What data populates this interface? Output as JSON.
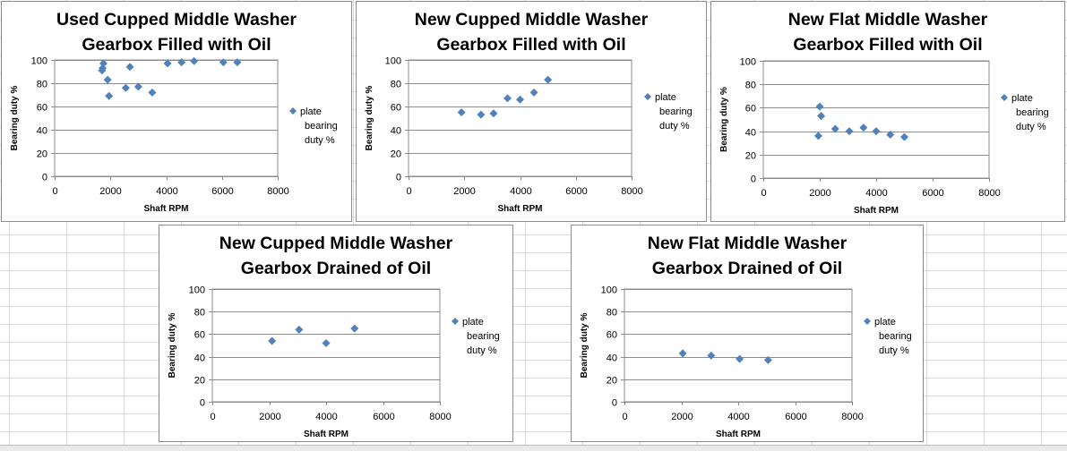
{
  "colors": {
    "marker": "#4f81bd",
    "gridline": "#8c8c8c",
    "axis": "#868686",
    "border": "#8c8c8c"
  },
  "legend_marker_icon": "diamond-marker",
  "chart_data": [
    {
      "type": "scatter",
      "title_lines": [
        "Used Cupped Middle Washer",
        "Gearbox Filled with Oil"
      ],
      "xlabel": "Shaft RPM",
      "ylabel": "Bearing duty %",
      "xlim": [
        0,
        8000
      ],
      "xticks": [
        0,
        2000,
        4000,
        6000,
        8000
      ],
      "ylim": [
        0,
        100
      ],
      "yticks": [
        0,
        20,
        40,
        60,
        80,
        100
      ],
      "grid": "horizontal",
      "legend": "right",
      "series": [
        {
          "name": "plate bearing duty %",
          "legend_lines": [
            "plate",
            "bearing",
            "duty %"
          ],
          "x": [
            1700,
            1720,
            1750,
            1900,
            1950,
            2550,
            2700,
            3000,
            3500,
            4050,
            4550,
            5000,
            6050,
            6550
          ],
          "y": [
            91,
            93,
            97,
            83,
            69,
            76,
            94,
            77,
            72,
            97,
            98,
            99,
            98,
            98
          ]
        }
      ]
    },
    {
      "type": "scatter",
      "title_lines": [
        "New Cupped Middle Washer",
        "Gearbox Filled with Oil"
      ],
      "xlabel": "Shaft RPM",
      "ylabel": "Bearing duty %",
      "xlim": [
        0,
        8000
      ],
      "xticks": [
        0,
        2000,
        4000,
        6000,
        8000
      ],
      "ylim": [
        0,
        100
      ],
      "yticks": [
        0,
        20,
        40,
        60,
        80,
        100
      ],
      "grid": "horizontal",
      "legend": "right",
      "series": [
        {
          "name": "plate bearing duty %",
          "legend_lines": [
            "plate",
            "bearing",
            "duty %"
          ],
          "x": [
            1900,
            2600,
            3050,
            3550,
            4000,
            4500,
            5000
          ],
          "y": [
            55,
            53,
            54,
            67,
            66,
            72,
            83
          ]
        }
      ]
    },
    {
      "type": "scatter",
      "title_lines": [
        "New Flat Middle Washer",
        "Gearbox Filled with Oil"
      ],
      "xlabel": "Shaft RPM",
      "ylabel": "Bearing duty %",
      "xlim": [
        0,
        8000
      ],
      "xticks": [
        0,
        2000,
        4000,
        6000,
        8000
      ],
      "ylim": [
        0,
        100
      ],
      "yticks": [
        0,
        20,
        40,
        60,
        80,
        100
      ],
      "grid": "horizontal",
      "legend": "right",
      "series": [
        {
          "name": "plate bearing duty %",
          "legend_lines": [
            "plate",
            "bearing",
            "duty %"
          ],
          "x": [
            1950,
            2000,
            2050,
            2550,
            3050,
            3550,
            4000,
            4500,
            5000
          ],
          "y": [
            36,
            61,
            53,
            42,
            40,
            43,
            40,
            37,
            35
          ]
        }
      ]
    },
    {
      "type": "scatter",
      "title_lines": [
        "New Cupped Middle Washer",
        "Gearbox Drained of Oil"
      ],
      "xlabel": "Shaft RPM",
      "ylabel": "Bearing duty %",
      "xlim": [
        0,
        8000
      ],
      "xticks": [
        0,
        2000,
        4000,
        6000,
        8000
      ],
      "ylim": [
        0,
        100
      ],
      "yticks": [
        0,
        20,
        40,
        60,
        80,
        100
      ],
      "grid": "horizontal",
      "legend": "right",
      "series": [
        {
          "name": "plate bearing duty %",
          "legend_lines": [
            "plate",
            "bearing",
            "duty %"
          ],
          "x": [
            2100,
            3050,
            4000,
            5000
          ],
          "y": [
            54,
            64,
            52,
            65
          ]
        }
      ]
    },
    {
      "type": "scatter",
      "title_lines": [
        "New Flat Middle Washer",
        "Gearbox Drained of Oil"
      ],
      "xlabel": "Shaft RPM",
      "ylabel": "Bearing duty %",
      "xlim": [
        0,
        8000
      ],
      "xticks": [
        0,
        2000,
        4000,
        6000,
        8000
      ],
      "ylim": [
        0,
        100
      ],
      "yticks": [
        0,
        20,
        40,
        60,
        80,
        100
      ],
      "grid": "horizontal",
      "legend": "right",
      "series": [
        {
          "name": "plate bearing duty %",
          "legend_lines": [
            "plate",
            "bearing",
            "duty %"
          ],
          "x": [
            2050,
            3050,
            4050,
            5050
          ],
          "y": [
            43,
            41,
            38,
            37
          ]
        }
      ]
    }
  ]
}
